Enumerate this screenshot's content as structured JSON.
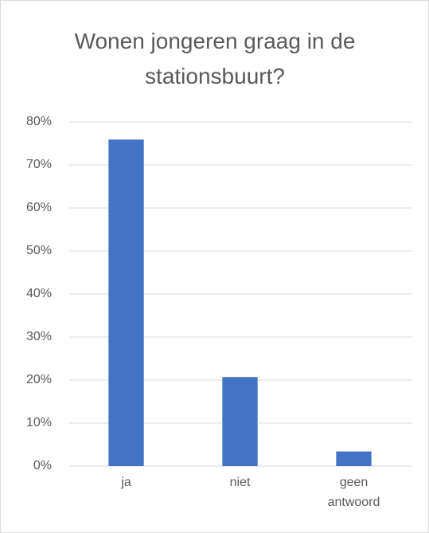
{
  "chart_data": {
    "type": "bar",
    "title": "Wonen jongeren graag in de stationsbuurt?",
    "categories": [
      "ja",
      "niet",
      "geen antwoord"
    ],
    "values": [
      75.9,
      20.7,
      3.4
    ],
    "color": "#4472c4",
    "ylim": [
      0,
      80
    ],
    "yticks": [
      {
        "value": 0,
        "label": "0%"
      },
      {
        "value": 10,
        "label": "10%"
      },
      {
        "value": 20,
        "label": "20%"
      },
      {
        "value": 30,
        "label": "30%"
      },
      {
        "value": 40,
        "label": "40%"
      },
      {
        "value": 50,
        "label": "50%"
      },
      {
        "value": 60,
        "label": "60%"
      },
      {
        "value": 70,
        "label": "70%"
      },
      {
        "value": 80,
        "label": "80%"
      }
    ],
    "grid": true
  }
}
